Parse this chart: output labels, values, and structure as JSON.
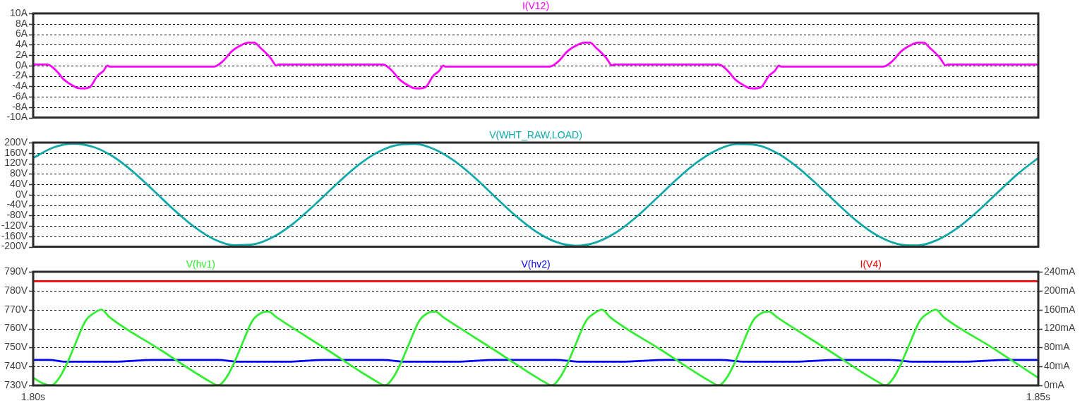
{
  "chart_data": [
    {
      "type": "line",
      "legend": "top",
      "grid": "y",
      "tick_labels": "y",
      "xlim": [
        1.8,
        1.85
      ],
      "ylim": [
        -10,
        10
      ],
      "yticks": [
        {
          "value": -10,
          "label": "-10A"
        },
        {
          "value": -8,
          "label": "-8A"
        },
        {
          "value": -6,
          "label": "-6A"
        },
        {
          "value": -4,
          "label": "-4A"
        },
        {
          "value": -2,
          "label": "-2A"
        },
        {
          "value": 0,
          "label": "0A"
        },
        {
          "value": 2,
          "label": "2A"
        },
        {
          "value": 4,
          "label": "4A"
        },
        {
          "value": 6,
          "label": "6A"
        },
        {
          "value": 8,
          "label": "8A"
        },
        {
          "value": 10,
          "label": "10A"
        }
      ],
      "series": [
        {
          "name": "I(V12)",
          "color": "#ff00ff",
          "x": [
            1.8,
            1.8007,
            1.8012,
            1.8015,
            1.8019,
            1.8022,
            1.8025,
            1.8028,
            1.8032,
            1.8035,
            1.8037,
            1.8038,
            1.809,
            1.8094,
            1.8099,
            1.8104,
            1.8107,
            1.811,
            1.8113,
            1.8118,
            1.8121,
            1.8122,
            1.8174,
            1.8179,
            1.8182,
            1.8186,
            1.8189,
            1.8192,
            1.8195,
            1.8199,
            1.8202,
            1.8204,
            1.8205,
            1.8257,
            1.8261,
            1.8266,
            1.8271,
            1.8274,
            1.8277,
            1.828,
            1.8285,
            1.8288,
            1.8289,
            1.8341,
            1.8346,
            1.8349,
            1.8353,
            1.8356,
            1.8359,
            1.8362,
            1.8366,
            1.8369,
            1.8371,
            1.8372,
            1.8423,
            1.8427,
            1.8432,
            1.8437,
            1.844,
            1.8443,
            1.8446,
            1.8451,
            1.8454,
            1.8455,
            1.85
          ],
          "values": [
            0.2,
            0.2,
            -1.2,
            -2.6,
            -3.7,
            -4.3,
            -4.4,
            -4.2,
            -2,
            -1,
            0,
            -0.2,
            -0.2,
            0.7,
            2.8,
            4,
            4.4,
            4.4,
            3.4,
            1.5,
            0,
            0.2,
            0.2,
            -1.2,
            -2.6,
            -3.7,
            -4.3,
            -4.4,
            -4.2,
            -2,
            -1,
            0,
            -0.2,
            -0.2,
            0.7,
            2.8,
            4,
            4.4,
            4.4,
            3.4,
            1.5,
            0,
            0.2,
            0.2,
            -1.2,
            -2.6,
            -3.7,
            -4.3,
            -4.4,
            -4.2,
            -2,
            -1,
            0,
            -0.2,
            -0.2,
            0.7,
            2.8,
            4,
            4.4,
            4.4,
            3.4,
            1.5,
            0,
            0.2,
            0.2
          ]
        }
      ]
    },
    {
      "type": "line",
      "legend": "top",
      "grid": "y",
      "tick_labels": "y",
      "xlim": [
        1.8,
        1.85
      ],
      "ylim": [
        -200,
        200
      ],
      "yticks": [
        {
          "value": -200,
          "label": "-200V"
        },
        {
          "value": -160,
          "label": "-160V"
        },
        {
          "value": -120,
          "label": "-120V"
        },
        {
          "value": -80,
          "label": "-80V"
        },
        {
          "value": -40,
          "label": "-40V"
        },
        {
          "value": 0,
          "label": "0V"
        },
        {
          "value": 40,
          "label": "40V"
        },
        {
          "value": 80,
          "label": "80V"
        },
        {
          "value": 120,
          "label": "120V"
        },
        {
          "value": 160,
          "label": "160V"
        },
        {
          "value": 200,
          "label": "200V"
        }
      ],
      "series": [
        {
          "name": "V(WHT_RAW,LOAD)",
          "color": "#10a8a8",
          "x": [
            1.8,
            1.801,
            1.802,
            1.803,
            1.804,
            1.805,
            1.806,
            1.807,
            1.808,
            1.809,
            1.81,
            1.811,
            1.812,
            1.813,
            1.814,
            1.815,
            1.816,
            1.817,
            1.818,
            1.819,
            1.82,
            1.821,
            1.822,
            1.823,
            1.824,
            1.825,
            1.826,
            1.827,
            1.828,
            1.829,
            1.83,
            1.831,
            1.832,
            1.833,
            1.834,
            1.835,
            1.836,
            1.837,
            1.838,
            1.839,
            1.84,
            1.841,
            1.842,
            1.843,
            1.844,
            1.845,
            1.846,
            1.847,
            1.848,
            1.849,
            1.85
          ],
          "values": [
            141,
            181,
            196,
            183,
            145,
            86,
            15,
            -58,
            -123,
            -171,
            -194,
            -190,
            -160,
            -107,
            -39,
            34,
            103,
            157,
            189,
            195,
            173,
            127,
            63,
            -10,
            -81,
            -141,
            -181,
            -196,
            -183,
            -145,
            -86,
            -15,
            58,
            123,
            171,
            194,
            190,
            160,
            107,
            39,
            -34,
            -103,
            -157,
            -189,
            -195,
            -173,
            -127,
            -63,
            10,
            81,
            141
          ]
        }
      ]
    },
    {
      "type": "line",
      "legend": "top",
      "grid": "y",
      "xlim": [
        1.8,
        1.85
      ],
      "xticks": [
        {
          "value": 1.8,
          "label": "1.80s"
        },
        {
          "value": 1.85,
          "label": "1.85s"
        }
      ],
      "ylim": [
        730,
        790
      ],
      "yticks": [
        {
          "value": 730,
          "label": "730V"
        },
        {
          "value": 740,
          "label": "740V"
        },
        {
          "value": 750,
          "label": "750V"
        },
        {
          "value": 760,
          "label": "760V"
        },
        {
          "value": 770,
          "label": "770V"
        },
        {
          "value": 780,
          "label": "780V"
        },
        {
          "value": 790,
          "label": "790V"
        }
      ],
      "y2lim": [
        0,
        240
      ],
      "y2ticks": [
        {
          "value": 0,
          "label": "0mA"
        },
        {
          "value": 40,
          "label": "40mA"
        },
        {
          "value": 80,
          "label": "80mA"
        },
        {
          "value": 120,
          "label": "120mA"
        },
        {
          "value": 160,
          "label": "160mA"
        },
        {
          "value": 200,
          "label": "200mA"
        },
        {
          "value": 240,
          "label": "240mA"
        }
      ],
      "series": [
        {
          "name": "V(hv1)",
          "color": "#33ee33",
          "x": [
            1.8,
            1.8005,
            1.8009,
            1.8013,
            1.8017,
            1.8021,
            1.8026,
            1.803,
            1.8034,
            1.8038,
            1.8063,
            1.8088,
            1.8092,
            1.8096,
            1.81,
            1.8104,
            1.8109,
            1.8113,
            1.8117,
            1.8121,
            1.8146,
            1.8171,
            1.8175,
            1.8179,
            1.8183,
            1.8187,
            1.8192,
            1.8196,
            1.82,
            1.8204,
            1.8229,
            1.8254,
            1.8258,
            1.8262,
            1.8266,
            1.827,
            1.8275,
            1.8279,
            1.8283,
            1.8287,
            1.8312,
            1.8337,
            1.8341,
            1.8345,
            1.8349,
            1.8353,
            1.8358,
            1.8362,
            1.8366,
            1.837,
            1.8395,
            1.842,
            1.8424,
            1.8428,
            1.8432,
            1.8436,
            1.8441,
            1.8445,
            1.8449,
            1.8453,
            1.8477,
            1.85
          ],
          "values": [
            734,
            731,
            730,
            734,
            742,
            752,
            764,
            768,
            770,
            766,
            749,
            732,
            730,
            734,
            742,
            752,
            764,
            768,
            769,
            766,
            749,
            732,
            730,
            734,
            742,
            752,
            764,
            768,
            769,
            766,
            749,
            732,
            730,
            734,
            742,
            752,
            764,
            768,
            770,
            766,
            749,
            732,
            730,
            734,
            742,
            752,
            764,
            768,
            769,
            766,
            749,
            732,
            730,
            734,
            742,
            752,
            764,
            768,
            770,
            766,
            750,
            734
          ]
        },
        {
          "name": "V(hv2)",
          "color": "#0000ff",
          "x": [
            1.8,
            1.8008,
            1.8016,
            1.804,
            1.806,
            1.8092,
            1.8102,
            1.8126,
            1.8145,
            1.8174,
            1.8185,
            1.821,
            1.823,
            1.826,
            1.8272,
            1.8292,
            1.8315,
            1.8342,
            1.8354,
            1.8378,
            1.84,
            1.8426,
            1.8438,
            1.8462,
            1.8485,
            1.85
          ],
          "values": [
            743.5,
            743.5,
            742.5,
            742.5,
            743.5,
            743.5,
            742.5,
            742.5,
            743.5,
            743.5,
            742.5,
            742.5,
            743.5,
            743.5,
            742.5,
            742.5,
            743.5,
            743.5,
            742.5,
            742.5,
            743.5,
            743.5,
            742.5,
            742.5,
            743.5,
            743.5
          ]
        },
        {
          "name": "I(V4)",
          "color": "#ff0000",
          "axis": "y2",
          "x": [
            1.8,
            1.85
          ],
          "values": [
            220,
            220
          ]
        }
      ]
    }
  ]
}
